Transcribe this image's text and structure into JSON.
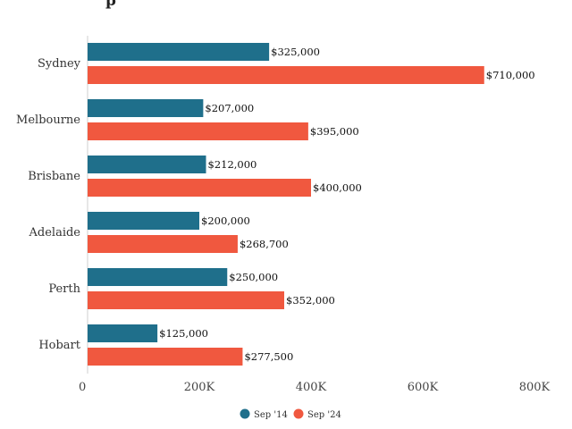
{
  "chart_data": {
    "type": "bar",
    "orientation": "horizontal",
    "title": "",
    "title_fragment": "p",
    "categories": [
      "Sydney",
      "Melbourne",
      "Brisbane",
      "Adelaide",
      "Perth",
      "Hobart"
    ],
    "series": [
      {
        "name": "Sep '14",
        "color": "#1f6f8b",
        "values": [
          325000,
          207000,
          212000,
          200000,
          250000,
          125000
        ],
        "labels": [
          "$325,000",
          "$207,000",
          "$212,000",
          "$200,000",
          "$250,000",
          "$125,000"
        ]
      },
      {
        "name": "Sep '24",
        "color": "#f0583f",
        "values": [
          710000,
          395000,
          400000,
          268700,
          352000,
          277500
        ],
        "labels": [
          "$710,000",
          "$395,000",
          "$400,000",
          "$268,700",
          "$352,000",
          "$277,500"
        ]
      }
    ],
    "x_ticks": [
      {
        "value": 0,
        "label": "0"
      },
      {
        "value": 200000,
        "label": "200K"
      },
      {
        "value": 400000,
        "label": "400K"
      },
      {
        "value": 600000,
        "label": "600K"
      },
      {
        "value": 800000,
        "label": "800K"
      }
    ],
    "xlim": [
      0,
      800000
    ],
    "xlabel": "",
    "ylabel": "",
    "grid": false,
    "legend_position": "bottom"
  }
}
